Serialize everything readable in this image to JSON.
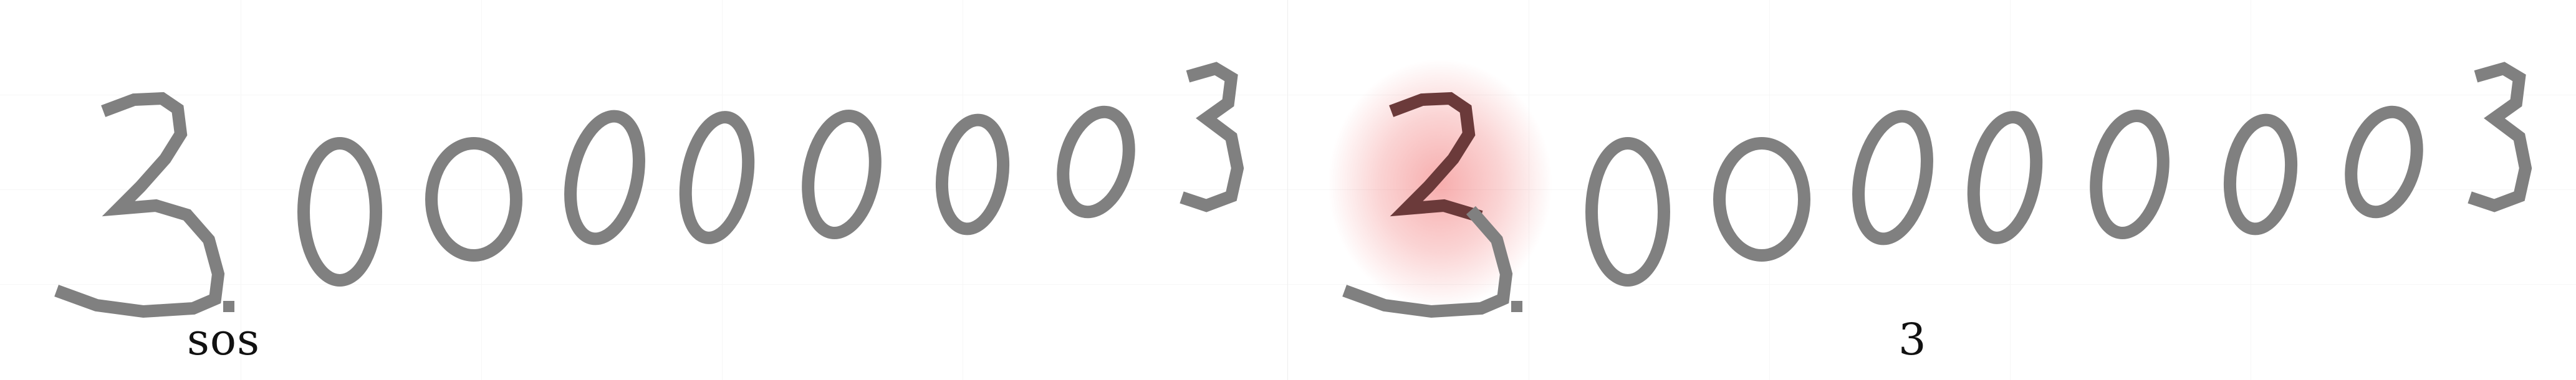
{
  "panels": {
    "left": {
      "caption": "sos"
    },
    "right": {
      "caption": "3"
    }
  },
  "colors": {
    "ink": "#808080",
    "ink_highlight": "#6b3a3a",
    "heat": "#eb3c3c",
    "caption": "#111111"
  }
}
